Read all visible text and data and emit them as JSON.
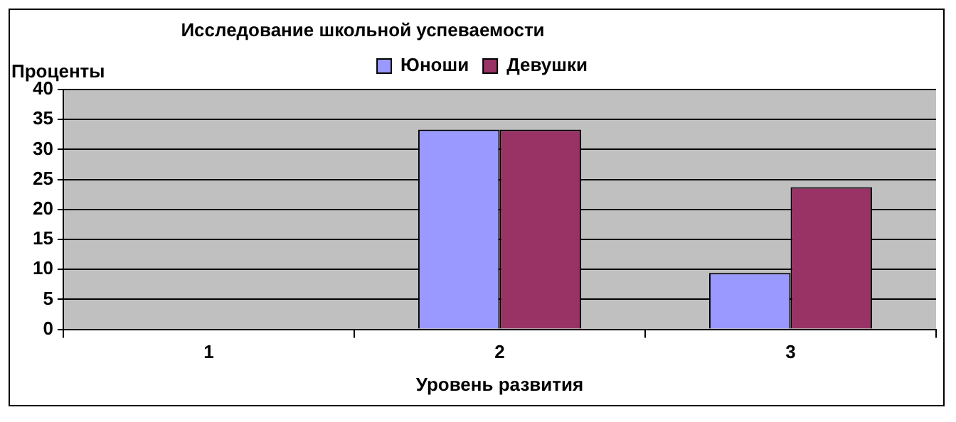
{
  "chart_data": {
    "type": "bar",
    "title": "Исследование школьной успеваемости",
    "xlabel": "Уровень развития",
    "ylabel": "Проценты",
    "categories": [
      "1",
      "2",
      "3"
    ],
    "series": [
      {
        "name": "Юноши",
        "color": "#9999ff",
        "values": [
          0,
          33.3,
          9.4
        ]
      },
      {
        "name": "Девушки",
        "color": "#993366",
        "values": [
          0,
          33.3,
          23.7
        ]
      }
    ],
    "ylim": [
      0,
      40
    ],
    "yticks": [
      0,
      5,
      10,
      15,
      20,
      25,
      30,
      35,
      40
    ],
    "grid": "y",
    "legend": "top"
  }
}
